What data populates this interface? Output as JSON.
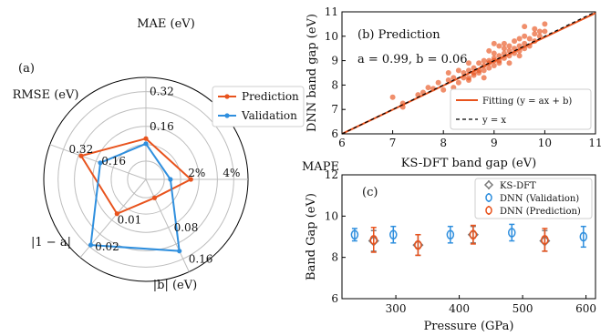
{
  "colors": {
    "prediction": "#e8531d",
    "validation": "#2f8fde",
    "ksdft": "#7a7a7a",
    "grid": "#bdbdbd"
  },
  "chart_data": [
    {
      "type": "radar",
      "panel_label": "(a)",
      "axes": [
        {
          "label": "MAE (eV)",
          "ticks": [
            "0.16",
            "0.32"
          ]
        },
        {
          "label": "MAPE",
          "ticks": [
            "2%",
            "4%"
          ]
        },
        {
          "label": "|b| (eV)",
          "ticks": [
            "0.08",
            "0.16"
          ]
        },
        {
          "label": "|1 − a|",
          "ticks": [
            "0.01",
            "0.02"
          ]
        },
        {
          "label": "RMSE (eV)",
          "ticks": [
            "0.16",
            "0.32"
          ]
        }
      ],
      "axis_max": [
        0.4,
        5.0,
        0.2,
        0.025,
        0.4
      ],
      "series": [
        {
          "name": "Prediction",
          "values": [
            0.16,
            2.2,
            0.04,
            0.011,
            0.27
          ]
        },
        {
          "name": "Validation",
          "values": [
            0.14,
            1.2,
            0.155,
            0.021,
            0.19
          ]
        }
      ],
      "legend": [
        "Prediction",
        "Validation"
      ],
      "legend_position": "right"
    },
    {
      "type": "scatter",
      "panel_label": "(b) Prediction",
      "annotation": "a = 0.99, b = 0.06",
      "xlabel": "KS-DFT band gap (eV)",
      "ylabel": "DNN band gap (eV)",
      "xlim": [
        6,
        11
      ],
      "ylim": [
        6,
        11
      ],
      "xticks": [
        "6",
        "7",
        "8",
        "9",
        "10",
        "11"
      ],
      "yticks": [
        "6",
        "7",
        "8",
        "9",
        "10",
        "11"
      ],
      "points": [
        [
          7.2,
          7.1
        ],
        [
          7.2,
          7.25
        ],
        [
          7.5,
          7.6
        ],
        [
          7.6,
          7.7
        ],
        [
          7.7,
          7.9
        ],
        [
          7.9,
          8.1
        ],
        [
          7.8,
          7.85
        ],
        [
          8.0,
          7.8
        ],
        [
          8.1,
          8.2
        ],
        [
          8.2,
          7.9
        ],
        [
          8.2,
          8.3
        ],
        [
          8.3,
          8.6
        ],
        [
          8.3,
          8.1
        ],
        [
          8.4,
          8.5
        ],
        [
          8.4,
          8.3
        ],
        [
          8.5,
          8.3
        ],
        [
          8.5,
          8.6
        ],
        [
          8.5,
          8.9
        ],
        [
          8.6,
          8.7
        ],
        [
          8.6,
          8.4
        ],
        [
          8.6,
          8.5
        ],
        [
          8.7,
          8.6
        ],
        [
          8.7,
          8.9
        ],
        [
          8.7,
          8.5
        ],
        [
          8.8,
          8.8
        ],
        [
          8.8,
          8.6
        ],
        [
          8.8,
          9.0
        ],
        [
          8.9,
          9.0
        ],
        [
          8.9,
          8.7
        ],
        [
          8.9,
          8.9
        ],
        [
          9.0,
          9.1
        ],
        [
          9.0,
          8.8
        ],
        [
          9.0,
          9.3
        ],
        [
          9.0,
          9.0
        ],
        [
          9.1,
          9.2
        ],
        [
          9.1,
          8.9
        ],
        [
          9.1,
          9.0
        ],
        [
          9.2,
          9.3
        ],
        [
          9.2,
          9.1
        ],
        [
          9.2,
          9.5
        ],
        [
          9.3,
          9.2
        ],
        [
          9.3,
          9.6
        ],
        [
          9.3,
          9.4
        ],
        [
          9.4,
          9.5
        ],
        [
          9.4,
          9.3
        ],
        [
          9.4,
          9.8
        ],
        [
          9.5,
          9.6
        ],
        [
          9.5,
          9.4
        ],
        [
          9.5,
          9.9
        ],
        [
          9.6,
          9.7
        ],
        [
          9.6,
          10.0
        ],
        [
          9.6,
          9.5
        ],
        [
          9.7,
          9.9
        ],
        [
          9.7,
          9.6
        ],
        [
          9.8,
          10.1
        ],
        [
          9.8,
          9.8
        ],
        [
          9.9,
          10.0
        ],
        [
          9.9,
          10.2
        ],
        [
          10.0,
          10.2
        ],
        [
          10.0,
          10.5
        ],
        [
          9.6,
          10.4
        ],
        [
          9.2,
          9.7
        ],
        [
          8.8,
          8.3
        ],
        [
          8.5,
          8.2
        ],
        [
          8.1,
          8.5
        ],
        [
          9.3,
          8.9
        ],
        [
          8.9,
          9.4
        ],
        [
          9.1,
          9.6
        ],
        [
          9.5,
          9.2
        ],
        [
          7.0,
          7.5
        ],
        [
          9.8,
          10.3
        ],
        [
          9.0,
          9.7
        ]
      ],
      "legend": [
        "Fitting (y = ax + b)",
        "y = x"
      ],
      "legend_position": "bottom-right"
    },
    {
      "type": "errorbar",
      "panel_label": "(c)",
      "xlabel": "Pressure (GPa)",
      "ylabel": "Band Gap (eV)",
      "xlim": [
        215,
        615
      ],
      "ylim": [
        6,
        12
      ],
      "xticks": [
        "300",
        "400",
        "500",
        "600"
      ],
      "yticks": [
        "6",
        "8",
        "10",
        "12"
      ],
      "series": [
        {
          "name": "KS-DFT",
          "points": [
            [
              265,
              8.8,
              0.5
            ],
            [
              335,
              8.6,
              0.5
            ],
            [
              422,
              9.1,
              0.4
            ],
            [
              535,
              8.8,
              0.5
            ]
          ]
        },
        {
          "name": "DNN (Validation)",
          "points": [
            [
              235,
              9.1,
              0.3
            ],
            [
              296,
              9.1,
              0.4
            ],
            [
              386,
              9.1,
              0.4
            ],
            [
              483,
              9.2,
              0.4
            ],
            [
              596,
              9.0,
              0.5
            ]
          ]
        },
        {
          "name": "DNN (Prediction)",
          "points": [
            [
              265,
              8.85,
              0.6
            ],
            [
              335,
              8.6,
              0.5
            ],
            [
              422,
              9.1,
              0.45
            ],
            [
              535,
              8.85,
              0.55
            ]
          ]
        }
      ],
      "legend": [
        "KS-DFT",
        "DNN (Validation)",
        "DNN (Prediction)"
      ],
      "legend_position": "top-right"
    }
  ]
}
